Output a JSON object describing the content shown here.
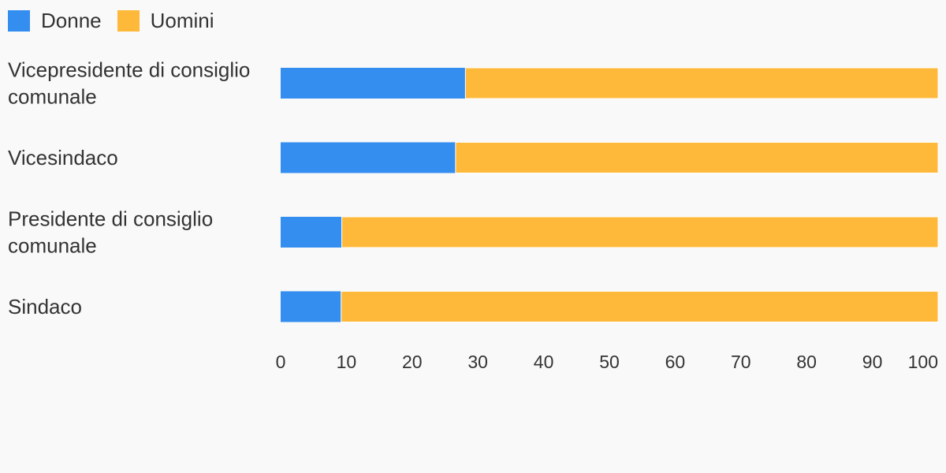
{
  "chart_data": {
    "type": "bar",
    "orientation": "horizontal",
    "stacked": true,
    "categories": [
      [
        "Vicepresidente di consiglio",
        "comunale"
      ],
      [
        "Vicesindaco"
      ],
      [
        "Presidente di consiglio",
        "comunale"
      ],
      [
        "Sindaco"
      ]
    ],
    "series": [
      {
        "name": "Donne",
        "color": "#348ef0",
        "values": [
          28.1,
          26.6,
          9.3,
          9.2
        ]
      },
      {
        "name": "Uomini",
        "color": "#ffb93a",
        "values": [
          71.9,
          73.4,
          90.7,
          90.8
        ]
      }
    ],
    "xlim": [
      0,
      100
    ],
    "xticks": [
      "0",
      "10",
      "20",
      "30",
      "40",
      "50",
      "60",
      "70",
      "80",
      "90",
      "100"
    ],
    "legend_position": "top-left",
    "grid": false
  }
}
